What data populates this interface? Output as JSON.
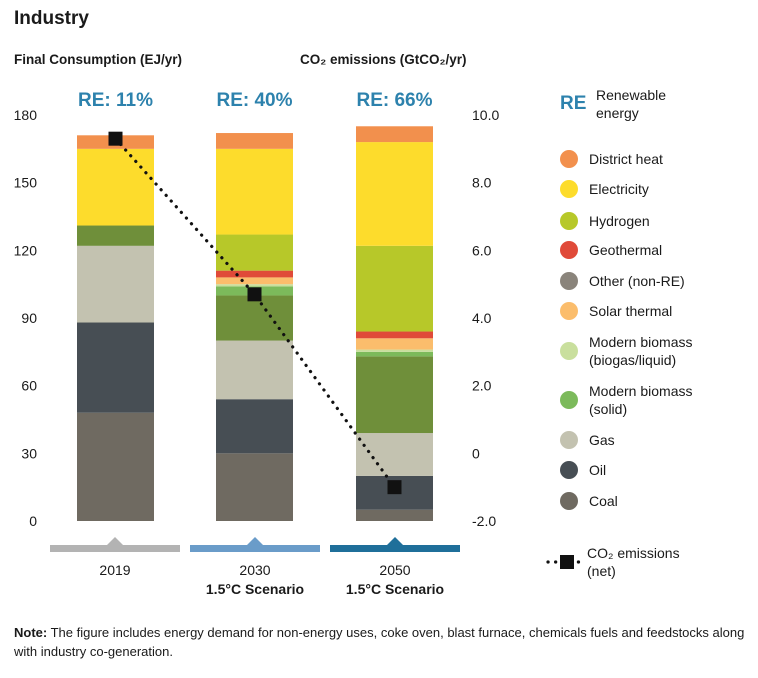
{
  "page_title": "Industry",
  "left_axis_title": "Final Consumption (EJ/yr)",
  "right_axis_title": "CO₂ emissions (GtCO₂/yr)",
  "note_label": "Note:",
  "note_text": " The figure includes energy demand for non-energy uses, coke oven, blast furnace, chemicals fuels and feedstocks along with industry co-generation.",
  "colors": {
    "re_text": "#2d82ad",
    "axis_gray": "#b3b3b3",
    "bar_2030": "#6a9cc9",
    "bar_2050": "#1f6f9a"
  },
  "chart_data": {
    "type": "bar",
    "stacked": true,
    "categories": [
      "2019",
      "2030",
      "2050"
    ],
    "category_sublabels": [
      "",
      "1.5°C Scenario",
      "1.5°C Scenario"
    ],
    "re_labels": [
      "RE: 11%",
      "RE: 40%",
      "RE: 66%"
    ],
    "y_left": {
      "min": 0,
      "max": 180,
      "ticks": [
        "0",
        "30",
        "60",
        "90",
        "120",
        "150",
        "180"
      ]
    },
    "y_right": {
      "min": -2.0,
      "max": 10.0,
      "ticks": [
        "-2.0",
        "0",
        "2.0",
        "4.0",
        "6.0",
        "8.0",
        "10.0"
      ]
    },
    "series": [
      {
        "name": "Coal",
        "color": "#6f6a61",
        "values": [
          48,
          30,
          5
        ]
      },
      {
        "name": "Oil",
        "color": "#474e54",
        "values": [
          40,
          24,
          15
        ]
      },
      {
        "name": "Gas",
        "color": "#c3c2b0",
        "values": [
          34,
          26,
          19
        ]
      },
      {
        "name": "Other (non-RE)",
        "color": "#8a847b",
        "values": [
          0,
          0,
          0
        ]
      },
      {
        "name": "Modern biomass (solid)",
        "color": "#6f8f3a",
        "values": [
          9,
          20,
          34
        ]
      },
      {
        "name": "Modern biomass (solid)",
        "color": "#7cba5b",
        "values": [
          0,
          4,
          2
        ]
      },
      {
        "name": "Modern biomass (biogas/liquid)",
        "color": "#c9df9d",
        "values": [
          0,
          1,
          1
        ]
      },
      {
        "name": "Solar thermal",
        "color": "#fbbd6c",
        "values": [
          0,
          3,
          5
        ]
      },
      {
        "name": "Geothermal",
        "color": "#e04a39",
        "values": [
          0,
          3,
          3
        ]
      },
      {
        "name": "Hydrogen",
        "color": "#b7c829",
        "values": [
          0,
          16,
          38
        ]
      },
      {
        "name": "Electricity",
        "color": "#fddc2c",
        "values": [
          34,
          38,
          46
        ]
      },
      {
        "name": "District heat",
        "color": "#f2904d",
        "values": [
          6,
          7,
          7
        ]
      }
    ],
    "emissions": {
      "name": "CO₂ emissions (net)",
      "values": [
        9.3,
        4.7,
        -1.0
      ]
    },
    "legend": [
      {
        "label": "District heat",
        "color": "#f2904d"
      },
      {
        "label": "Electricity",
        "color": "#fddc2c"
      },
      {
        "label": "Hydrogen",
        "color": "#b7c829"
      },
      {
        "label": "Geothermal",
        "color": "#e04a39"
      },
      {
        "label": "Other (non-RE)",
        "color": "#8a847b"
      },
      {
        "label": "Solar thermal",
        "color": "#fbbd6c"
      },
      {
        "label": "Modern biomass (biogas/liquid)",
        "color": "#c9df9d"
      },
      {
        "label": "Modern biomass (solid)",
        "color": "#7cba5b"
      },
      {
        "label": "Gas",
        "color": "#c3c2b0"
      },
      {
        "label": "Oil",
        "color": "#474e54"
      },
      {
        "label": "Coal",
        "color": "#6f6a61"
      }
    ],
    "legend_re_key": "RE",
    "legend_re_label": "Renewable energy",
    "legend_emissions_label": "CO₂ emissions (net)"
  }
}
